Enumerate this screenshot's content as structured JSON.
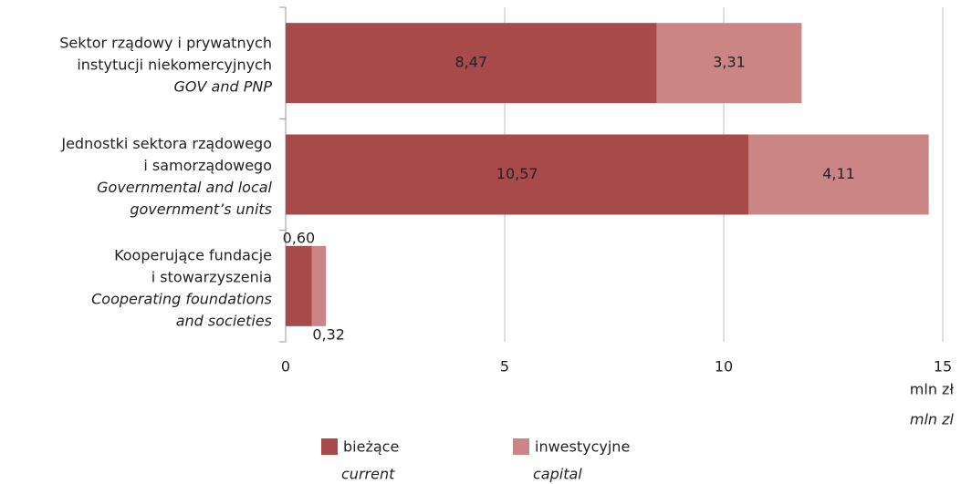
{
  "chart_data": {
    "type": "bar",
    "orientation": "horizontal",
    "stacked": true,
    "categories": [
      [
        "Sektor rządowy i prywatnych",
        "instytucji niekomercyjnych"
      ],
      [
        "Jednostki sektora rządowego",
        "i samorządowego"
      ],
      [
        "Kooperujące fundacje",
        "i stowarzyszenia"
      ]
    ],
    "categories_en": [
      [
        "GOV and PNP"
      ],
      [
        "Governmental and local",
        "government’s units"
      ],
      [
        "Cooperating foundations",
        "and societies"
      ]
    ],
    "series": [
      {
        "name": "bieżące",
        "name_en": "current",
        "color": "#a84a4a",
        "label_color": "#ffffff",
        "values": [
          8.47,
          10.57,
          0.6
        ],
        "value_labels": [
          "8,47",
          "10,57",
          "0,60"
        ]
      },
      {
        "name": "inwestycyjne",
        "name_en": "capital",
        "color": "#cc8585",
        "label_color": "#222222",
        "values": [
          3.31,
          4.11,
          0.32
        ],
        "value_labels": [
          "3,31",
          "4,11",
          "0,32"
        ]
      }
    ],
    "xlim": [
      0,
      15
    ],
    "xticks": [
      0,
      5,
      10,
      15
    ],
    "grid": true,
    "x_label": "mln zł",
    "x_label_en": "mln zl"
  }
}
